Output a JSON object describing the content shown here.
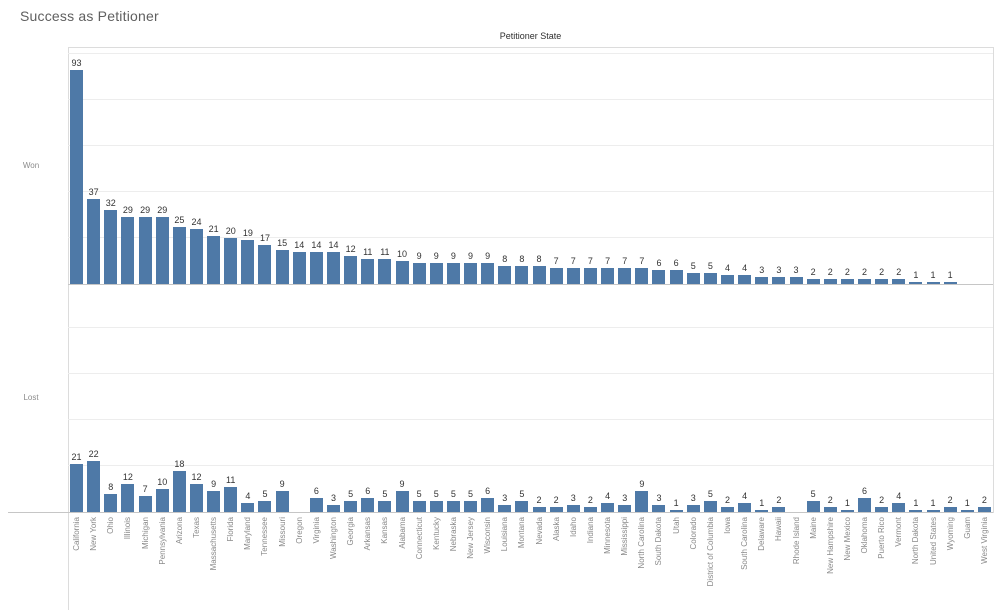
{
  "title": "Success as Petitioner",
  "column_header": "Petitioner State",
  "colors": {
    "bar": "#4e79a7",
    "value_label": "#333333"
  },
  "chart_data": {
    "type": "bar",
    "orientation": "vertical",
    "xlabel": "Petitioner State",
    "grid": true,
    "gridline_interval": 20,
    "value_axis_range": [
      0,
      100
    ],
    "row_panes": [
      "Won",
      "Lost"
    ],
    "categories": [
      "California",
      "New York",
      "Ohio",
      "Illinois",
      "Michigan",
      "Pennsylvania",
      "Arizona",
      "Texas",
      "Massachusetts",
      "Florida",
      "Maryland",
      "Tennessee",
      "Missouri",
      "Oregon",
      "Virginia",
      "Washington",
      "Georgia",
      "Arkansas",
      "Kansas",
      "Alabama",
      "Connecticut",
      "Kentucky",
      "Nebraska",
      "New Jersey",
      "Wisconsin",
      "Louisiana",
      "Montana",
      "Nevada",
      "Alaska",
      "Idaho",
      "Indiana",
      "Minnesota",
      "Mississippi",
      "North Carolina",
      "South Dakota",
      "Utah",
      "Colorado",
      "District of Columbia",
      "Iowa",
      "South Carolina",
      "Delaware",
      "Hawaii",
      "Rhode Island",
      "Maine",
      "New Hampshire",
      "New Mexico",
      "Oklahoma",
      "Puerto Rico",
      "Vermont",
      "North Dakota",
      "United States",
      "Wyoming",
      "Guam",
      "West Virginia"
    ],
    "series": [
      {
        "name": "Won",
        "values": [
          93,
          37,
          32,
          29,
          29,
          29,
          25,
          24,
          21,
          20,
          19,
          17,
          15,
          14,
          14,
          14,
          12,
          11,
          11,
          10,
          9,
          9,
          9,
          9,
          9,
          8,
          8,
          8,
          7,
          7,
          7,
          7,
          7,
          7,
          6,
          6,
          5,
          5,
          4,
          4,
          3,
          3,
          3,
          2,
          2,
          2,
          2,
          2,
          2,
          1,
          1,
          1,
          null,
          null
        ]
      },
      {
        "name": "Lost",
        "values": [
          21,
          22,
          8,
          12,
          7,
          10,
          18,
          12,
          9,
          11,
          4,
          5,
          9,
          null,
          6,
          3,
          5,
          6,
          5,
          9,
          5,
          5,
          5,
          5,
          6,
          3,
          5,
          2,
          2,
          3,
          2,
          4,
          3,
          9,
          3,
          1,
          3,
          5,
          2,
          4,
          1,
          2,
          null,
          5,
          2,
          1,
          6,
          2,
          4,
          1,
          1,
          2,
          1,
          2
        ]
      }
    ]
  }
}
